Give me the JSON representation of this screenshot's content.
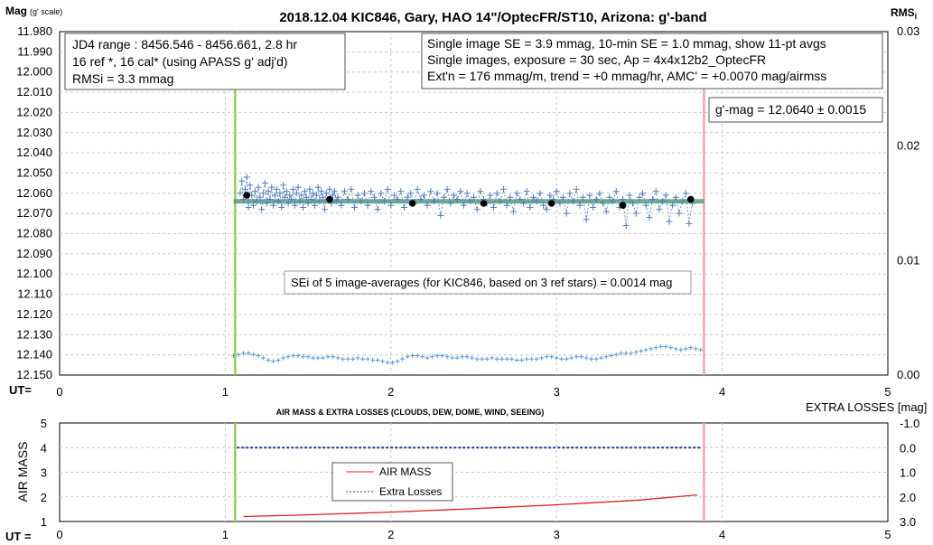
{
  "chart_data": [
    {
      "type": "scatter",
      "title": "2018.12.04 KIC846, Gary, HAO 14\"/OptecFR/ST10, Arizona: g'-band",
      "ylabel": "Mag",
      "ylabel_suffix": "(g' scale)",
      "y2label": "RMS",
      "y2label_suffix": "i",
      "xlabel": "UT=",
      "ylim": [
        12.15,
        11.98
      ],
      "y2lim": [
        0,
        0.03
      ],
      "xlim": [
        0,
        5
      ],
      "y_ticks": [
        "11.980",
        "11.990",
        "12.000",
        "12.010",
        "12.020",
        "12.030",
        "12.040",
        "12.050",
        "12.060",
        "12.070",
        "12.080",
        "12.090",
        "12.100",
        "12.110",
        "12.120",
        "12.130",
        "12.140",
        "12.150"
      ],
      "y2_ticks": [
        "0.03",
        "0.02",
        "0.01",
        "0.00"
      ],
      "x_ticks": [
        "0",
        "1",
        "2",
        "3",
        "4",
        "5"
      ],
      "grid": true,
      "vlines": [
        {
          "x": 1.06,
          "color": "#92d050"
        },
        {
          "x": 3.89,
          "color": "#f4a6a6"
        }
      ],
      "fit_line": {
        "value": 12.064,
        "x_range": [
          1.05,
          3.89
        ],
        "color": "#5b9a80"
      },
      "series": [
        {
          "marker": "plus",
          "color": "#4f7fbf",
          "x": [
            1.09,
            1.1,
            1.11,
            1.12,
            1.13,
            1.14,
            1.15,
            1.16,
            1.17,
            1.18,
            1.19,
            1.2,
            1.21,
            1.22,
            1.23,
            1.24,
            1.25,
            1.26,
            1.27,
            1.28,
            1.29,
            1.3,
            1.31,
            1.32,
            1.33,
            1.34,
            1.35,
            1.36,
            1.37,
            1.38,
            1.39,
            1.4,
            1.41,
            1.42,
            1.43,
            1.44,
            1.45,
            1.46,
            1.47,
            1.48,
            1.49,
            1.5,
            1.51,
            1.52,
            1.53,
            1.54,
            1.55,
            1.56,
            1.57,
            1.58,
            1.59,
            1.6,
            1.61,
            1.62,
            1.63,
            1.64,
            1.65,
            1.66,
            1.67,
            1.68,
            1.7,
            1.72,
            1.74,
            1.76,
            1.78,
            1.8,
            1.82,
            1.84,
            1.86,
            1.88,
            1.9,
            1.92,
            1.94,
            1.96,
            1.98,
            2.0,
            2.02,
            2.04,
            2.06,
            2.08,
            2.1,
            2.12,
            2.14,
            2.16,
            2.18,
            2.2,
            2.22,
            2.24,
            2.26,
            2.28,
            2.3,
            2.32,
            2.34,
            2.36,
            2.38,
            2.4,
            2.42,
            2.44,
            2.46,
            2.48,
            2.5,
            2.52,
            2.54,
            2.56,
            2.58,
            2.6,
            2.62,
            2.64,
            2.66,
            2.68,
            2.7,
            2.72,
            2.74,
            2.76,
            2.78,
            2.8,
            2.82,
            2.84,
            2.86,
            2.88,
            2.9,
            2.92,
            2.94,
            2.96,
            2.98,
            3.0,
            3.02,
            3.04,
            3.06,
            3.08,
            3.1,
            3.12,
            3.14,
            3.16,
            3.18,
            3.2,
            3.22,
            3.24,
            3.26,
            3.28,
            3.3,
            3.32,
            3.34,
            3.36,
            3.38,
            3.4,
            3.42,
            3.44,
            3.46,
            3.48,
            3.5,
            3.52,
            3.54,
            3.56,
            3.58,
            3.6,
            3.62,
            3.64,
            3.66,
            3.68,
            3.7,
            3.72,
            3.74,
            3.76,
            3.78,
            3.8,
            3.82
          ],
          "y": [
            12.06,
            12.054,
            12.063,
            12.058,
            12.052,
            12.067,
            12.056,
            12.061,
            12.066,
            12.059,
            12.064,
            12.057,
            12.062,
            12.068,
            12.06,
            12.055,
            12.065,
            12.059,
            12.063,
            12.057,
            12.066,
            12.061,
            12.058,
            12.064,
            12.06,
            12.067,
            12.056,
            12.062,
            12.059,
            12.065,
            12.061,
            12.063,
            12.058,
            12.066,
            12.06,
            12.057,
            12.064,
            12.061,
            12.067,
            12.059,
            12.062,
            12.065,
            12.058,
            12.063,
            12.06,
            12.066,
            12.061,
            12.057,
            12.064,
            12.059,
            12.062,
            12.068,
            12.06,
            12.063,
            12.058,
            12.065,
            12.061,
            12.059,
            12.064,
            12.062,
            12.066,
            12.059,
            12.063,
            12.058,
            12.067,
            12.061,
            12.064,
            12.06,
            12.066,
            12.059,
            12.062,
            12.068,
            12.06,
            12.064,
            12.058,
            12.066,
            12.061,
            12.063,
            12.059,
            12.067,
            12.062,
            12.06,
            12.065,
            12.058,
            12.063,
            12.061,
            12.066,
            12.059,
            12.064,
            12.06,
            12.071,
            12.062,
            12.058,
            12.065,
            12.061,
            12.063,
            12.059,
            12.066,
            12.06,
            12.064,
            12.062,
            12.068,
            12.059,
            12.063,
            12.065,
            12.061,
            12.067,
            12.06,
            12.064,
            12.058,
            12.066,
            12.062,
            12.069,
            12.06,
            12.063,
            12.065,
            12.059,
            12.067,
            12.062,
            12.064,
            12.06,
            12.066,
            12.068,
            12.061,
            12.063,
            12.059,
            12.065,
            12.062,
            12.07,
            12.06,
            12.064,
            12.058,
            12.066,
            12.062,
            12.073,
            12.061,
            12.067,
            12.063,
            12.06,
            12.065,
            12.069,
            12.062,
            12.064,
            12.059,
            12.067,
            12.063,
            12.076,
            12.061,
            12.065,
            12.07,
            12.062,
            12.06,
            12.066,
            12.072,
            12.063,
            12.059,
            12.068,
            12.064,
            12.061,
            12.074,
            12.066,
            12.062,
            12.07,
            12.064,
            12.06,
            12.075,
            12.065
          ]
        },
        {
          "marker": "dot",
          "color": "#000000",
          "x": [
            1.13,
            1.63,
            2.13,
            2.56,
            2.97,
            3.4,
            3.81
          ],
          "y": [
            12.061,
            12.063,
            12.065,
            12.065,
            12.065,
            12.066,
            12.063
          ]
        },
        {
          "marker": "plus-small",
          "color": "#5b9bd5",
          "x": [
            1.05,
            1.08,
            1.11,
            1.14,
            1.17,
            1.2,
            1.23,
            1.26,
            1.29,
            1.32,
            1.35,
            1.38,
            1.41,
            1.44,
            1.47,
            1.5,
            1.53,
            1.56,
            1.59,
            1.62,
            1.65,
            1.68,
            1.71,
            1.74,
            1.77,
            1.8,
            1.83,
            1.86,
            1.89,
            1.92,
            1.95,
            1.98,
            2.01,
            2.04,
            2.07,
            2.1,
            2.13,
            2.16,
            2.19,
            2.22,
            2.25,
            2.28,
            2.31,
            2.34,
            2.37,
            2.4,
            2.43,
            2.46,
            2.49,
            2.52,
            2.55,
            2.58,
            2.61,
            2.64,
            2.67,
            2.7,
            2.73,
            2.76,
            2.79,
            2.82,
            2.85,
            2.88,
            2.91,
            2.94,
            2.97,
            3.0,
            3.03,
            3.06,
            3.09,
            3.12,
            3.15,
            3.18,
            3.21,
            3.24,
            3.27,
            3.3,
            3.33,
            3.36,
            3.39,
            3.42,
            3.45,
            3.48,
            3.51,
            3.54,
            3.57,
            3.6,
            3.63,
            3.66,
            3.69,
            3.72,
            3.75,
            3.78,
            3.81,
            3.84,
            3.87
          ],
          "y2": [
            0.0017,
            0.0018,
            0.0019,
            0.0019,
            0.0018,
            0.0017,
            0.0015,
            0.0013,
            0.0012,
            0.0013,
            0.0015,
            0.0016,
            0.0017,
            0.0017,
            0.0016,
            0.0016,
            0.0015,
            0.0015,
            0.0015,
            0.0016,
            0.0016,
            0.0015,
            0.0014,
            0.0014,
            0.0014,
            0.0015,
            0.0014,
            0.0014,
            0.0013,
            0.0013,
            0.0012,
            0.0011,
            0.0011,
            0.0012,
            0.0014,
            0.0016,
            0.0017,
            0.0017,
            0.0016,
            0.0015,
            0.0016,
            0.0017,
            0.0017,
            0.0016,
            0.0015,
            0.0015,
            0.0016,
            0.0016,
            0.0015,
            0.0014,
            0.0014,
            0.0014,
            0.0015,
            0.0014,
            0.0014,
            0.0014,
            0.0014,
            0.0013,
            0.0013,
            0.0014,
            0.0014,
            0.0014,
            0.0015,
            0.0016,
            0.0016,
            0.0015,
            0.0014,
            0.0014,
            0.0015,
            0.0016,
            0.0016,
            0.0015,
            0.0014,
            0.0014,
            0.0015,
            0.0016,
            0.0017,
            0.0018,
            0.0019,
            0.0019,
            0.0019,
            0.002,
            0.0021,
            0.0022,
            0.0023,
            0.0024,
            0.0025,
            0.0025,
            0.0024,
            0.0023,
            0.0022,
            0.0023,
            0.0024,
            0.0023,
            0.0022
          ]
        }
      ],
      "annotations": {
        "box1": [
          "JD4 range : 8456.546 - 8456.661,  2.8  hr",
          "16 ref *, 16 cal* (using APASS g' adj'd)",
          "RMSi = 3.3 mmag"
        ],
        "box2": [
          "Single image SE = 3.9 mmag, 10-min SE = 1.0 mmag, show  11-pt avgs",
          "Single images, exposure = 30 sec, Ap = 4x4x12b2_OptecFR",
          "Ext'n = 176 mmag/m, trend =  +0 mmag/hr, AMC' = +0.0070 mag/airmss"
        ],
        "gmag": "g'-mag = 12.0640 ± 0.0015",
        "sei": "SEi of 5 image-averages (for KIC846, based on 3 ref stars) = 0.0014 mag"
      }
    },
    {
      "type": "line",
      "title": "AIR MASS & EXTRA LOSSES (CLOUDS, DEW, DOME, WIND, SEEING)",
      "ylabel": "AIR MASS",
      "y2label": "EXTRA LOSSES [mag]",
      "xlabel": "UT =",
      "ylim": [
        1,
        5
      ],
      "y2lim": [
        3.0,
        -1.0
      ],
      "xlim": [
        0,
        5
      ],
      "y_ticks": [
        "5",
        "4",
        "3",
        "2",
        "1"
      ],
      "y2_ticks": [
        "-1.0",
        "0.0",
        "1.0",
        "2.0",
        "3.0"
      ],
      "x_ticks": [
        "0",
        "1",
        "2",
        "3",
        "4",
        "5"
      ],
      "grid": true,
      "vlines": [
        {
          "x": 1.06,
          "color": "#92d050"
        },
        {
          "x": 3.89,
          "color": "#f4a6a6"
        }
      ],
      "legend": [
        "AIR MASS",
        "Extra Losses"
      ],
      "legend_position": "center-left",
      "series": [
        {
          "name": "AIR MASS",
          "color": "#e02020",
          "x": [
            1.11,
            1.5,
            2.0,
            2.5,
            3.0,
            3.5,
            3.85
          ],
          "y": [
            1.2,
            1.27,
            1.38,
            1.52,
            1.68,
            1.87,
            2.08
          ]
        },
        {
          "name": "Extra Losses",
          "color": "#1f3f9f",
          "x": [
            1.07,
            1.5,
            2.0,
            2.5,
            3.0,
            3.5,
            3.87
          ],
          "y2": [
            0.0,
            0.0,
            0.0,
            0.0,
            0.0,
            0.0,
            0.0
          ]
        }
      ]
    }
  ]
}
